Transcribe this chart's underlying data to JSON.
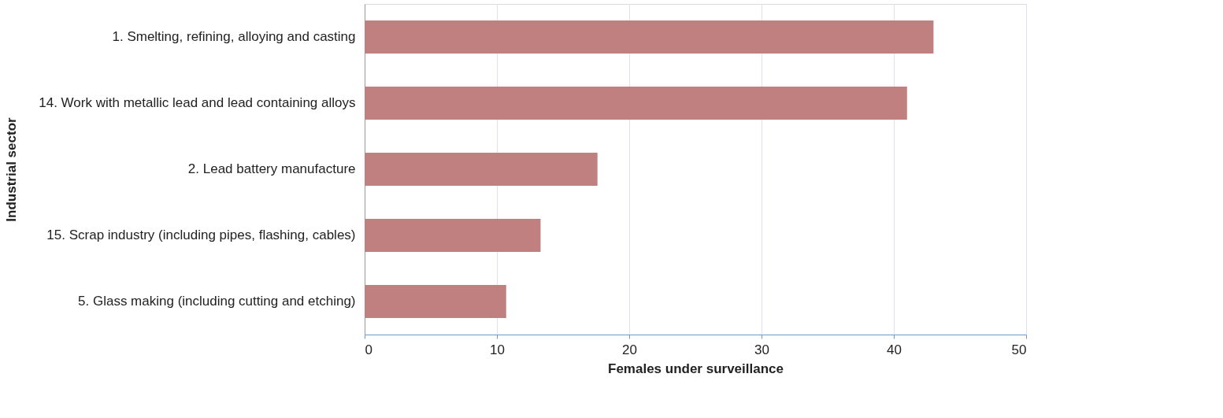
{
  "chart_data": {
    "type": "bar",
    "orientation": "horizontal",
    "categories": [
      "1. Smelting, refining, alloying and casting",
      "14. Work with metallic lead and lead containing alloys",
      "2. Lead battery manufacture",
      "15. Scrap industry (including pipes, flashing, cables)",
      "5. Glass making (including cutting and etching)"
    ],
    "values": [
      43.0,
      41.0,
      17.6,
      13.3,
      10.7
    ],
    "color": "#c0807f",
    "xlabel": "Females under surveillance",
    "ylabel": "Industrial sector",
    "xlim": [
      0,
      50
    ],
    "xticks": [
      0,
      10,
      20,
      30,
      40,
      50
    ],
    "grid": "x"
  }
}
